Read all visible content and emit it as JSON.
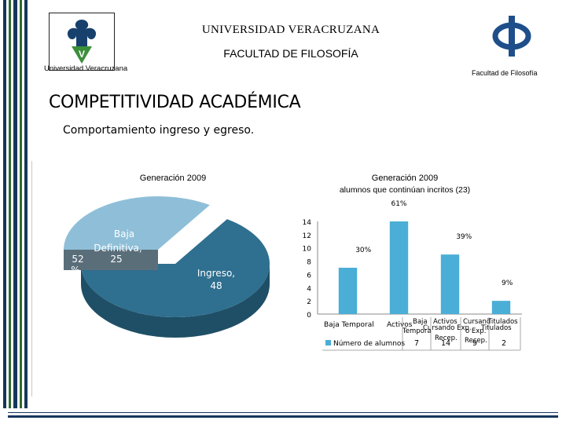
{
  "header": {
    "university": "UNIVERSIDAD VERACRUZANA",
    "faculty": "FACULTAD DE FILOSOFÍA",
    "uv_caption": "Universidad Veracruzana",
    "ff_caption": "Facultad de Filosofía"
  },
  "slide": {
    "title": "COMPETITIVIDAD ACADÉMICA",
    "subtitle": "Comportamiento ingreso y egreso."
  },
  "colors": {
    "pie_light": "#8fbfd8",
    "pie_dark": "#2f6f8f",
    "bar": "#4aaed6",
    "frame_dark": "#17365d",
    "frame_green": "#2e6b2e"
  },
  "chart_data": [
    {
      "type": "pie",
      "title": "Generación 2009",
      "slices": [
        {
          "label": "Baja Definitiva,",
          "value": 25,
          "value_label": "25",
          "percent_label": "52 %"
        },
        {
          "label": "Ingreso,",
          "value": 48,
          "value_label": "48"
        }
      ]
    },
    {
      "type": "bar",
      "title": "Generación 2009",
      "subtitle": "alumnos que continúan incritos (23)",
      "categories": [
        "Baja Temporal",
        "Activos",
        "Cursando Exp. Recep.",
        "Titulados"
      ],
      "categories_display": [
        "Baja Temporal",
        "Activos",
        "Cursand o Exp. Recep.",
        "Titulados"
      ],
      "values": [
        7,
        14,
        9,
        2
      ],
      "percent_labels": [
        "30%",
        "61%",
        "39%",
        "9%"
      ],
      "ylim": [
        0,
        14
      ],
      "yticks": [
        "0",
        "2",
        "4",
        "6",
        "8",
        "10",
        "12",
        "14"
      ],
      "series": [
        {
          "name": "Número de alumnos",
          "values": [
            7,
            14,
            9,
            2
          ]
        }
      ],
      "table_headers": [
        "Baja Temporal",
        "Activos",
        "Cursando Exp. Recep.",
        "Titulados"
      ],
      "legend": "bottom-left"
    }
  ]
}
